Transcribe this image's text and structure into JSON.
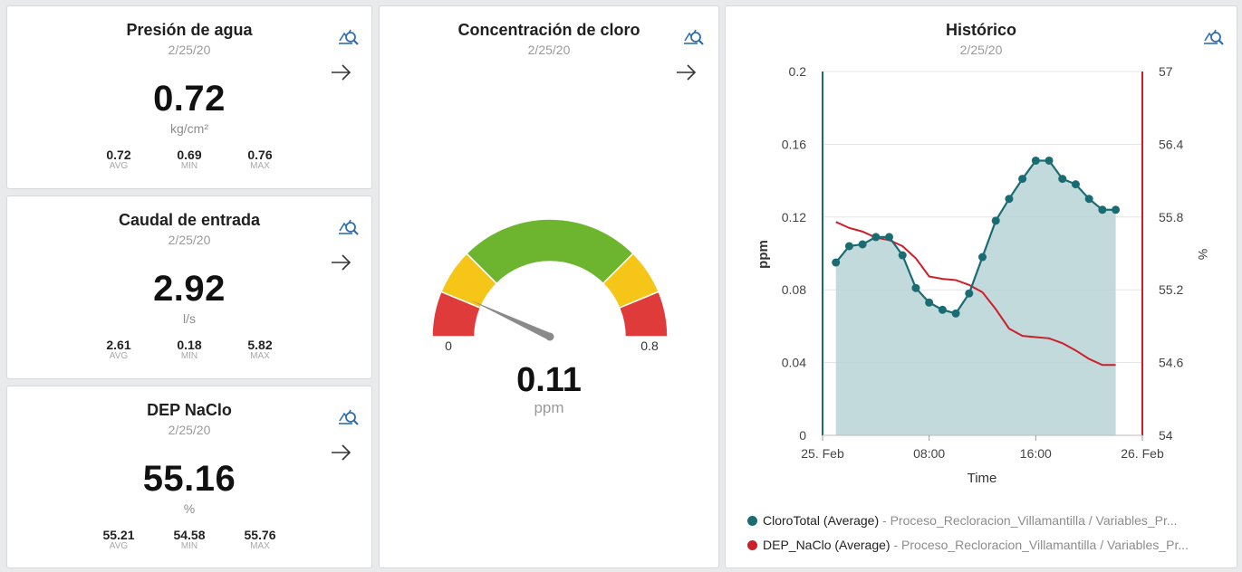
{
  "colors": {
    "teal": "#1a6c73",
    "red": "#cc1f2a",
    "gauge_red": "#e03b3b",
    "gauge_yellow": "#f5c518",
    "gauge_green": "#6db52e",
    "needle": "#8a8a8a",
    "icon": "#2f6db0"
  },
  "kpis": [
    {
      "title": "Presión de agua",
      "date": "2/25/20",
      "value": "0.72",
      "unit": "kg/cm²",
      "stats": [
        {
          "value": "0.72",
          "label": "AVG"
        },
        {
          "value": "0.69",
          "label": "MIN"
        },
        {
          "value": "0.76",
          "label": "MAX"
        }
      ]
    },
    {
      "title": "Caudal de entrada",
      "date": "2/25/20",
      "value": "2.92",
      "unit": "l/s",
      "stats": [
        {
          "value": "2.61",
          "label": "AVG"
        },
        {
          "value": "0.18",
          "label": "MIN"
        },
        {
          "value": "5.82",
          "label": "MAX"
        }
      ]
    },
    {
      "title": "DEP NaClo",
      "date": "2/25/20",
      "value": "55.16",
      "unit": "%",
      "stats": [
        {
          "value": "55.21",
          "label": "AVG"
        },
        {
          "value": "54.58",
          "label": "MIN"
        },
        {
          "value": "55.76",
          "label": "MAX"
        }
      ]
    }
  ],
  "gauge": {
    "title": "Concentración de cloro",
    "date": "2/25/20",
    "value": "0.11",
    "unit": "ppm",
    "min_label": "0",
    "max_label": "0.8",
    "min": 0,
    "max": 0.8,
    "needle_value": 0.11
  },
  "historico": {
    "title": "Histórico",
    "date": "2/25/20",
    "legend": [
      {
        "name": "CloroTotal (Average)",
        "source": " - Proceso_Recloracion_Villamantilla / Variables_Pr..."
      },
      {
        "name": "DEP_NaClo (Average)",
        "source": " - Proceso_Recloracion_Villamantilla / Variables_Pr..."
      }
    ]
  },
  "chart_data": {
    "type": "area",
    "xlabel": "Time",
    "ylabel": "ppm",
    "y2label": "%",
    "x_ticks": [
      "25. Feb",
      "08:00",
      "16:00",
      "26. Feb"
    ],
    "y_ticks": [
      "0",
      "0.04",
      "0.08",
      "0.12",
      "0.16",
      "0.2"
    ],
    "y2_ticks": [
      "54",
      "54.6",
      "55.2",
      "55.8",
      "56.4",
      "57"
    ],
    "ylim": [
      0,
      0.2
    ],
    "y2lim": [
      54,
      57
    ],
    "xlim": [
      0,
      24
    ],
    "series": [
      {
        "name": "CloroTotal (Average)",
        "axis": "left",
        "x": [
          1,
          2,
          3,
          4,
          5,
          6,
          7,
          8,
          9,
          10,
          11,
          12,
          13,
          14,
          15,
          16,
          17,
          18,
          19,
          20,
          21,
          22
        ],
        "y": [
          0.095,
          0.104,
          0.105,
          0.109,
          0.109,
          0.099,
          0.081,
          0.073,
          0.069,
          0.067,
          0.078,
          0.098,
          0.118,
          0.13,
          0.141,
          0.151,
          0.151,
          0.141,
          0.138,
          0.13,
          0.124,
          0.124
        ]
      },
      {
        "name": "DEP_NaClo (Average)",
        "axis": "right",
        "x": [
          1,
          2,
          3,
          4,
          5,
          6,
          7,
          8,
          9,
          10,
          11,
          12,
          13,
          14,
          15,
          16,
          17,
          18,
          19,
          20,
          21,
          22
        ],
        "y": [
          55.76,
          55.71,
          55.68,
          55.63,
          55.61,
          55.56,
          55.46,
          55.31,
          55.29,
          55.28,
          55.24,
          55.18,
          55.04,
          54.88,
          54.82,
          54.81,
          54.8,
          54.76,
          54.7,
          54.63,
          54.58,
          54.58
        ]
      }
    ]
  }
}
